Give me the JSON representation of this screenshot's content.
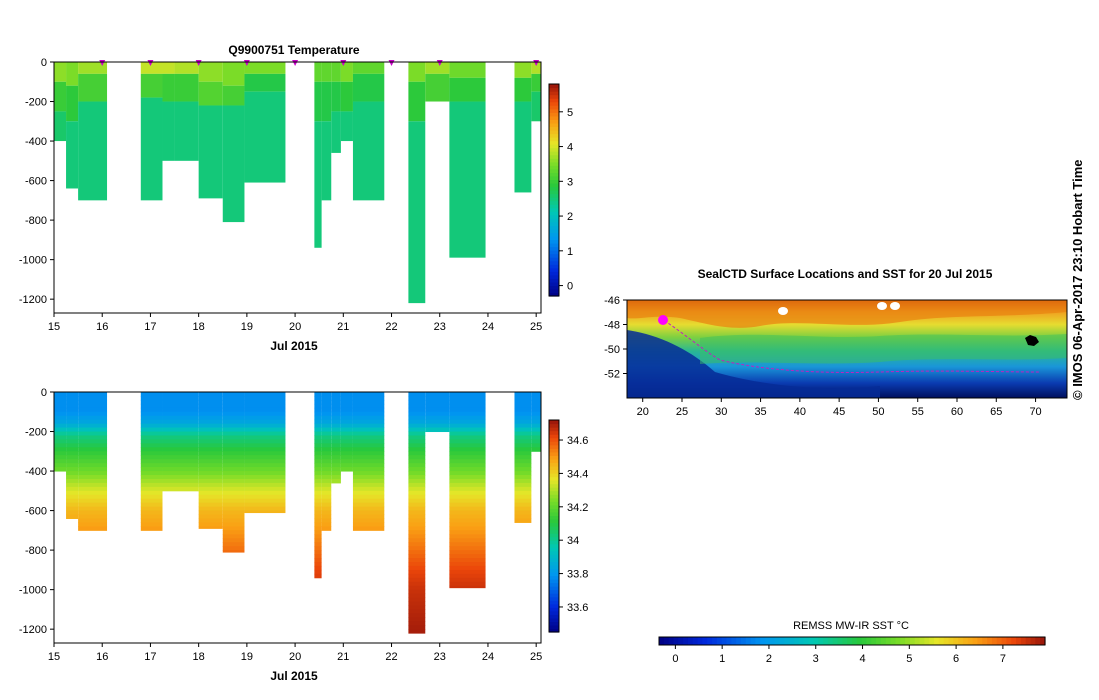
{
  "chart_data": [
    {
      "id": "temperature",
      "type": "heatmap",
      "title": "Q9900751  Temperature",
      "xlabel": "Jul 2015",
      "x_ticks": [
        15,
        16,
        17,
        18,
        19,
        20,
        21,
        22,
        23,
        24,
        25
      ],
      "y_ticks": [
        0,
        -200,
        -400,
        -600,
        -800,
        -1000,
        -1200
      ],
      "xlim": [
        15,
        25.1
      ],
      "ylim": [
        -1270,
        0
      ],
      "colorbar": {
        "ticks": [
          0,
          1,
          2,
          3,
          4,
          5
        ],
        "range": [
          -0.3,
          5.8
        ]
      },
      "surface_markers": [
        16,
        17,
        18,
        19,
        20,
        21,
        22,
        23,
        25
      ],
      "profiles": [
        {
          "x0": 15.0,
          "x1": 15.25,
          "depth": 400,
          "layers": [
            [
              0,
              100,
              3.6
            ],
            [
              100,
              250,
              3.0
            ],
            [
              250,
              400,
              2.6
            ]
          ]
        },
        {
          "x0": 15.25,
          "x1": 15.5,
          "depth": 640,
          "layers": [
            [
              0,
              120,
              3.5
            ],
            [
              120,
              300,
              2.9
            ],
            [
              300,
              640,
              2.5
            ]
          ]
        },
        {
          "x0": 15.5,
          "x1": 16.1,
          "depth": 700,
          "layers": [
            [
              0,
              60,
              3.7
            ],
            [
              60,
              200,
              3.1
            ],
            [
              200,
              700,
              2.5
            ]
          ]
        },
        {
          "x0": 16.8,
          "x1": 17.25,
          "depth": 700,
          "layers": [
            [
              0,
              60,
              3.9
            ],
            [
              60,
              180,
              3.1
            ],
            [
              180,
              700,
              2.5
            ]
          ]
        },
        {
          "x0": 17.25,
          "x1": 17.5,
          "depth": 500,
          "layers": [
            [
              0,
              60,
              3.9
            ],
            [
              60,
              200,
              3.0
            ],
            [
              200,
              500,
              2.5
            ]
          ]
        },
        {
          "x0": 17.5,
          "x1": 18.0,
          "depth": 500,
          "layers": [
            [
              0,
              60,
              3.8
            ],
            [
              60,
              200,
              3.0
            ],
            [
              200,
              500,
              2.5
            ]
          ]
        },
        {
          "x0": 18.0,
          "x1": 18.5,
          "depth": 690,
          "layers": [
            [
              0,
              100,
              3.6
            ],
            [
              100,
              220,
              3.2
            ],
            [
              220,
              690,
              2.5
            ]
          ]
        },
        {
          "x0": 18.5,
          "x1": 18.95,
          "depth": 810,
          "layers": [
            [
              0,
              120,
              3.5
            ],
            [
              120,
              220,
              3.1
            ],
            [
              220,
              810,
              2.5
            ]
          ]
        },
        {
          "x0": 18.95,
          "x1": 19.8,
          "depth": 610,
          "layers": [
            [
              0,
              60,
              3.5
            ],
            [
              60,
              150,
              2.8
            ],
            [
              150,
              610,
              2.5
            ]
          ]
        },
        {
          "x0": 20.4,
          "x1": 20.55,
          "depth": 940,
          "layers": [
            [
              0,
              100,
              3.3
            ],
            [
              100,
              300,
              2.8
            ],
            [
              300,
              940,
              2.5
            ]
          ]
        },
        {
          "x0": 20.55,
          "x1": 20.75,
          "depth": 700,
          "layers": [
            [
              0,
              100,
              3.3
            ],
            [
              100,
              300,
              2.8
            ],
            [
              300,
              700,
              2.5
            ]
          ]
        },
        {
          "x0": 20.75,
          "x1": 20.95,
          "depth": 460,
          "layers": [
            [
              0,
              100,
              3.3
            ],
            [
              100,
              250,
              2.8
            ],
            [
              250,
              460,
              2.5
            ]
          ]
        },
        {
          "x0": 20.95,
          "x1": 21.2,
          "depth": 400,
          "layers": [
            [
              0,
              100,
              3.5
            ],
            [
              100,
              250,
              2.9
            ],
            [
              250,
              400,
              2.5
            ]
          ]
        },
        {
          "x0": 21.2,
          "x1": 21.85,
          "depth": 700,
          "layers": [
            [
              0,
              60,
              3.3
            ],
            [
              60,
              200,
              2.8
            ],
            [
              200,
              700,
              2.5
            ]
          ]
        },
        {
          "x0": 22.35,
          "x1": 22.7,
          "depth": 1220,
          "layers": [
            [
              0,
              100,
              3.5
            ],
            [
              100,
              300,
              2.9
            ],
            [
              300,
              1220,
              2.5
            ]
          ]
        },
        {
          "x0": 22.7,
          "x1": 23.2,
          "depth": 200,
          "layers": [
            [
              0,
              60,
              3.7
            ],
            [
              60,
              200,
              3.1
            ]
          ]
        },
        {
          "x0": 23.2,
          "x1": 23.95,
          "depth": 990,
          "layers": [
            [
              0,
              80,
              3.4
            ],
            [
              80,
              200,
              2.9
            ],
            [
              200,
              990,
              2.5
            ]
          ]
        },
        {
          "x0": 24.55,
          "x1": 24.9,
          "depth": 660,
          "layers": [
            [
              0,
              80,
              3.6
            ],
            [
              80,
              200,
              2.9
            ],
            [
              200,
              660,
              2.5
            ]
          ]
        },
        {
          "x0": 24.9,
          "x1": 25.1,
          "depth": 300,
          "layers": [
            [
              0,
              60,
              3.8
            ],
            [
              60,
              150,
              3.0
            ],
            [
              150,
              300,
              2.6
            ]
          ]
        }
      ]
    },
    {
      "id": "salinity",
      "type": "heatmap",
      "title": "",
      "xlabel": "Jul 2015",
      "x_ticks": [
        15,
        16,
        17,
        18,
        19,
        20,
        21,
        22,
        23,
        24,
        25
      ],
      "y_ticks": [
        0,
        -200,
        -400,
        -600,
        -800,
        -1000,
        -1200
      ],
      "xlim": [
        15,
        25.1
      ],
      "ylim": [
        -1270,
        0
      ],
      "colorbar": {
        "ticks": [
          "33.6",
          "33.8",
          "34",
          "34.2",
          "34.4",
          "34.6"
        ],
        "range": [
          33.45,
          34.72
        ]
      },
      "profiles": [
        {
          "x0": 15.0,
          "x1": 15.25,
          "depth": 400
        },
        {
          "x0": 15.25,
          "x1": 15.5,
          "depth": 640
        },
        {
          "x0": 15.5,
          "x1": 16.1,
          "depth": 700
        },
        {
          "x0": 16.8,
          "x1": 17.25,
          "depth": 700
        },
        {
          "x0": 17.25,
          "x1": 18.0,
          "depth": 500
        },
        {
          "x0": 18.0,
          "x1": 18.5,
          "depth": 690
        },
        {
          "x0": 18.5,
          "x1": 18.95,
          "depth": 810
        },
        {
          "x0": 18.95,
          "x1": 19.8,
          "depth": 610
        },
        {
          "x0": 20.4,
          "x1": 20.55,
          "depth": 940
        },
        {
          "x0": 20.55,
          "x1": 20.75,
          "depth": 700
        },
        {
          "x0": 20.75,
          "x1": 20.95,
          "depth": 460
        },
        {
          "x0": 20.95,
          "x1": 21.2,
          "depth": 400
        },
        {
          "x0": 21.2,
          "x1": 21.85,
          "depth": 700
        },
        {
          "x0": 22.35,
          "x1": 22.7,
          "depth": 1220
        },
        {
          "x0": 22.7,
          "x1": 23.2,
          "depth": 200
        },
        {
          "x0": 23.2,
          "x1": 23.95,
          "depth": 990
        },
        {
          "x0": 24.55,
          "x1": 24.9,
          "depth": 660
        },
        {
          "x0": 24.9,
          "x1": 25.1,
          "depth": 300
        }
      ],
      "salinity_profile": [
        [
          0,
          33.78
        ],
        [
          100,
          33.78
        ],
        [
          160,
          33.85
        ],
        [
          220,
          34.02
        ],
        [
          300,
          34.12
        ],
        [
          400,
          34.22
        ],
        [
          500,
          34.35
        ],
        [
          600,
          34.45
        ],
        [
          700,
          34.5
        ],
        [
          800,
          34.56
        ],
        [
          900,
          34.62
        ],
        [
          1000,
          34.66
        ],
        [
          1200,
          34.7
        ]
      ]
    },
    {
      "id": "sst-map",
      "type": "heatmap",
      "title": "SealCTD Surface Locations and SST for 20 Jul 2015",
      "x_ticks": [
        20,
        25,
        30,
        35,
        40,
        45,
        50,
        55,
        60,
        65,
        70
      ],
      "y_ticks": [
        -46,
        -48,
        -50,
        -52
      ],
      "xlim": [
        18,
        74
      ],
      "ylim": [
        -54,
        -46
      ],
      "colorbar": {
        "label": "REMSS MW-IR SST °C",
        "ticks": [
          0,
          1,
          2,
          3,
          4,
          5,
          6,
          7
        ],
        "range": [
          -0.35,
          7.9
        ]
      }
    }
  ],
  "credit": "© IMOS 06-Apr-2017 23:10 Hobart Time"
}
